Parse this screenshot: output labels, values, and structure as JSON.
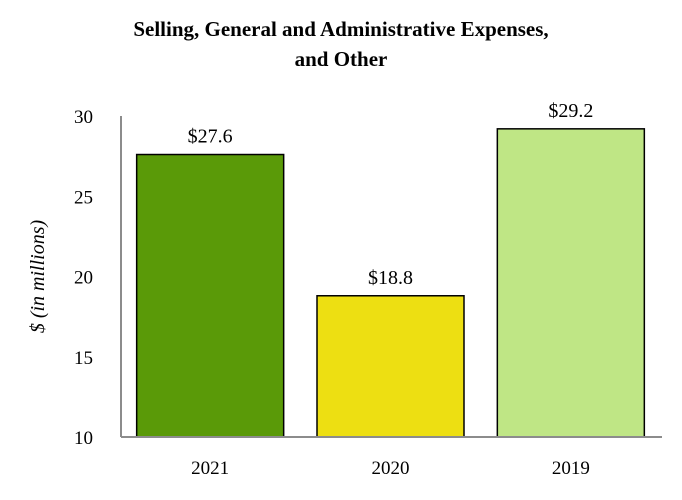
{
  "chart_data": {
    "type": "bar",
    "title_lines": [
      "Selling, General and Administrative Expenses,",
      "and Other"
    ],
    "title": "Selling, General and Administrative Expenses, and Other",
    "categories": [
      "2021",
      "2020",
      "2019"
    ],
    "values": [
      27.6,
      18.8,
      29.2
    ],
    "data_labels": [
      "$27.6",
      "$18.8",
      "$29.2"
    ],
    "bar_colors": [
      "#5a9a08",
      "#eddf12",
      "#bfe685"
    ],
    "bar_border_color": "#000000",
    "axis_color": "#8c8c8c",
    "xlabel": "",
    "ylabel": "$ (in millions)",
    "ylim": [
      10,
      30
    ],
    "yticks": [
      10,
      15,
      20,
      25,
      30
    ],
    "grid": false,
    "legend": "none"
  }
}
